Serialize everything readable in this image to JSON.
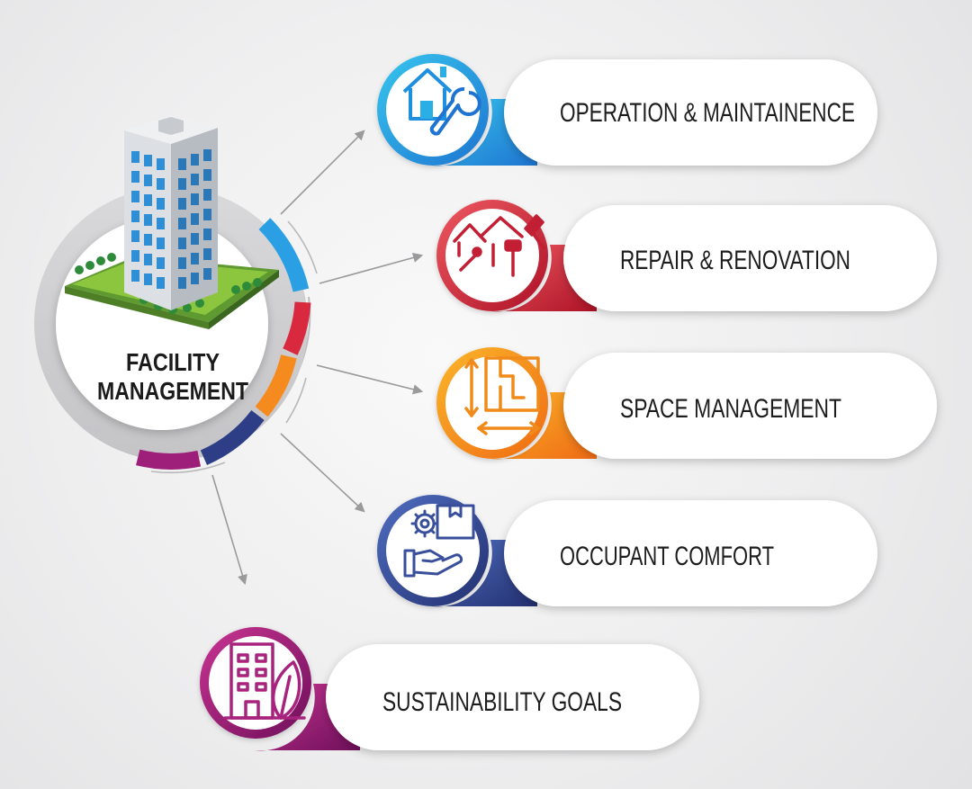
{
  "center": {
    "line1": "FACILITY",
    "line2": "MANAGEMENT"
  },
  "items": [
    {
      "label": "OPERATION & MAINTAINENCE",
      "icon": "house-wrench-icon",
      "color": "#2aaee6",
      "color_dark": "#1f7fd4"
    },
    {
      "label": "REPAIR & RENOVATION",
      "icon": "roof-repair-icon",
      "color": "#e0444f",
      "color_dark": "#b3162a"
    },
    {
      "label": "SPACE MANAGEMENT",
      "icon": "floor-plan-icon",
      "color": "#f9a21a",
      "color_dark": "#ef6c14"
    },
    {
      "label": "OCCUPANT COMFORT",
      "icon": "hand-gear-box-icon",
      "color": "#3f5aa8",
      "color_dark": "#283779"
    },
    {
      "label": "SUSTAINABILITY GOALS",
      "icon": "building-leaf-icon",
      "color": "#b52581",
      "color_dark": "#7c1462"
    }
  ]
}
